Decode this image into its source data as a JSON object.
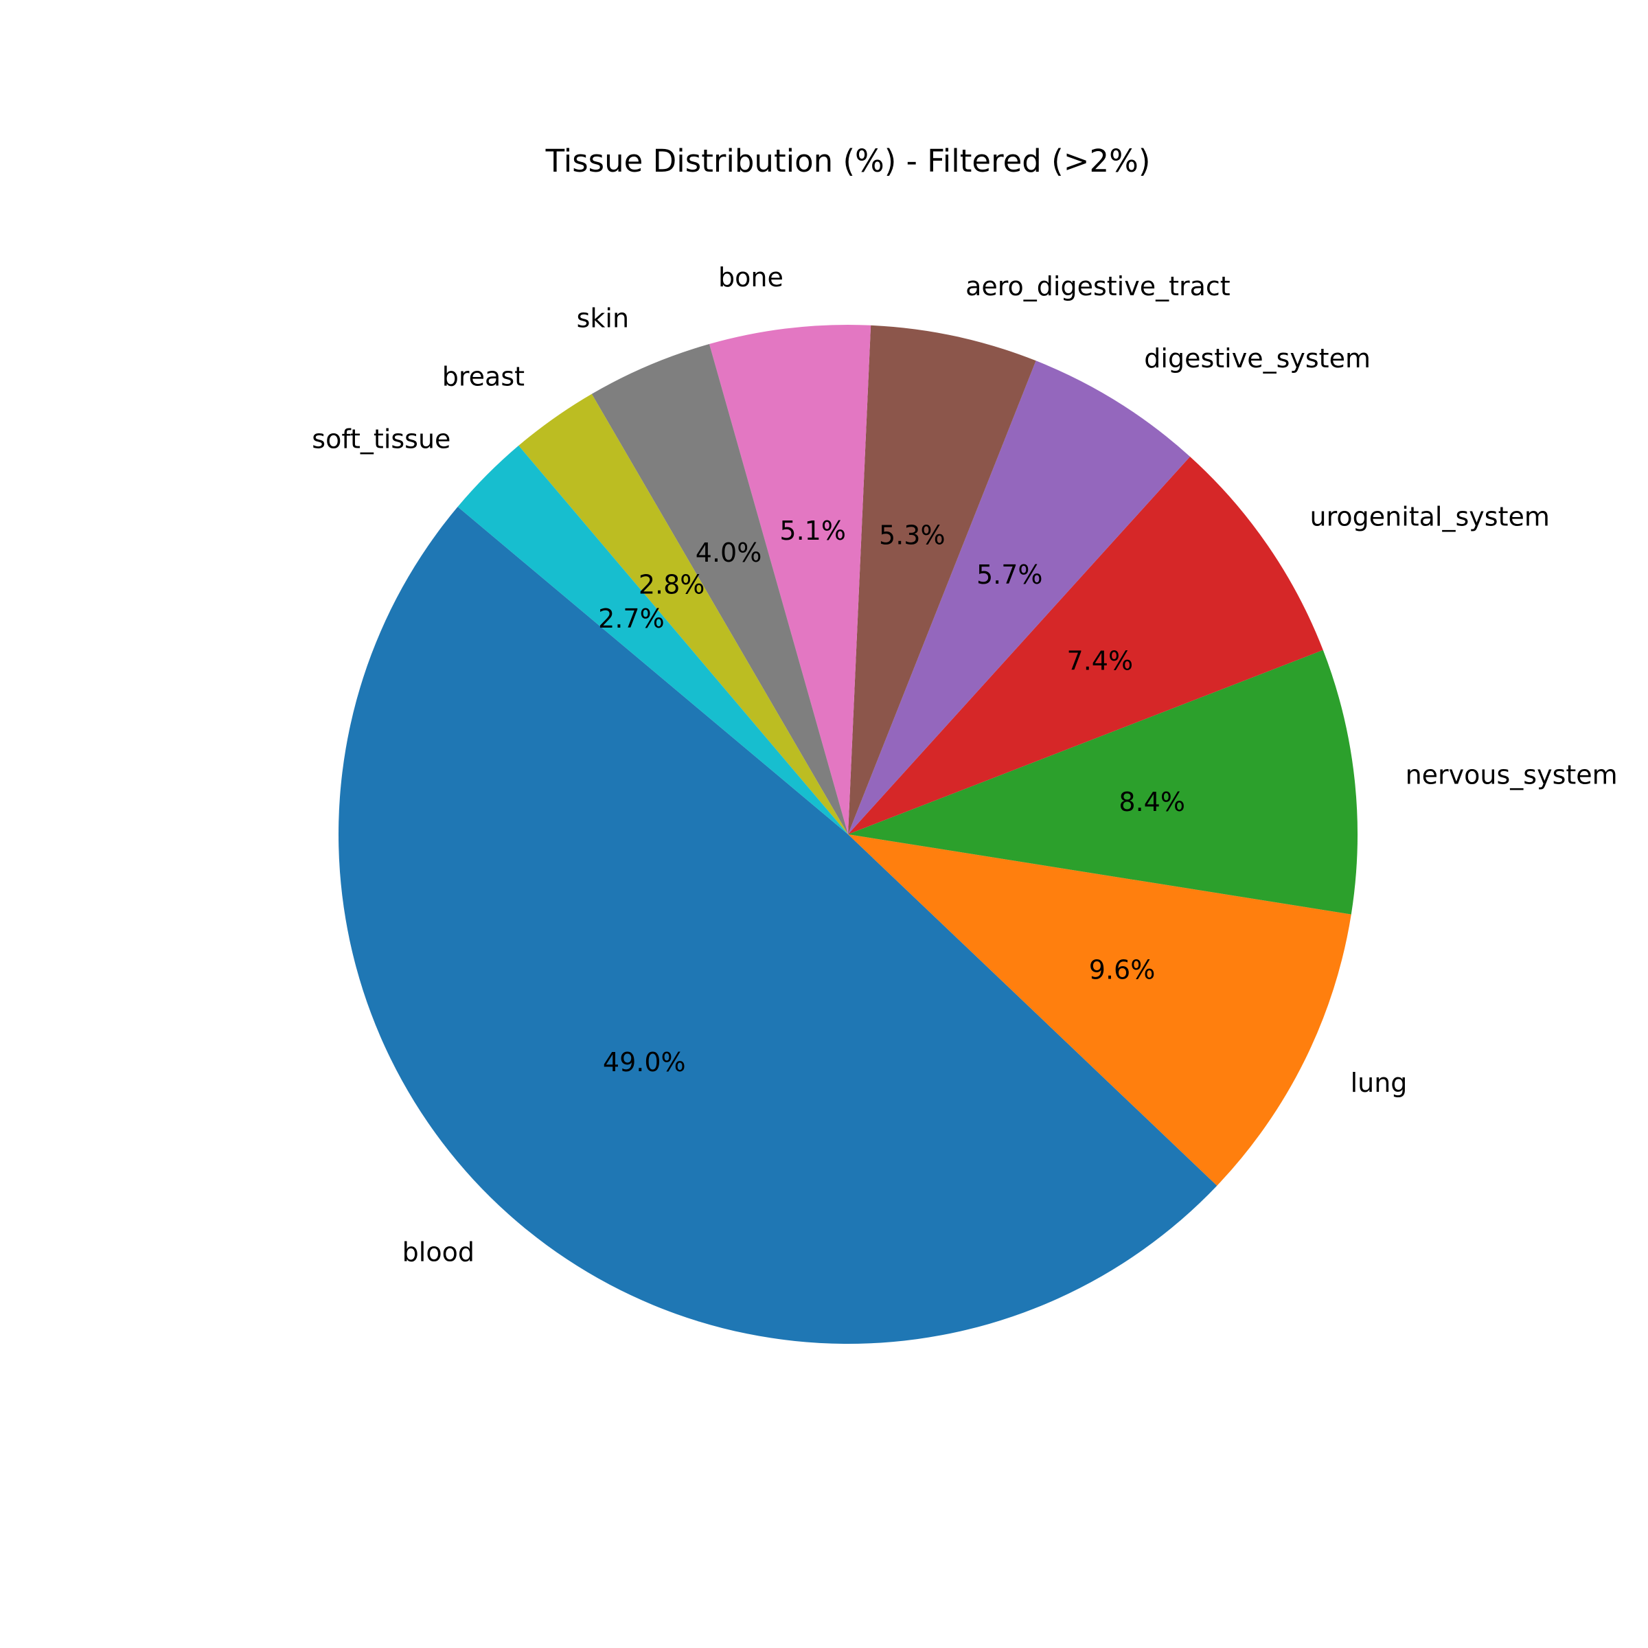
{
  "chart_data": {
    "type": "pie",
    "title": "Tissue Distribution (%) - Filtered (>2%)",
    "slices": [
      {
        "label": "blood",
        "value": 49.0,
        "pct_text": "49.0%",
        "color": "#1f77b4"
      },
      {
        "label": "lung",
        "value": 9.6,
        "pct_text": "9.6%",
        "color": "#ff7f0e"
      },
      {
        "label": "nervous_system",
        "value": 8.4,
        "pct_text": "8.4%",
        "color": "#2ca02c"
      },
      {
        "label": "urogenital_system",
        "value": 7.4,
        "pct_text": "7.4%",
        "color": "#d62728"
      },
      {
        "label": "digestive_system",
        "value": 5.7,
        "pct_text": "5.7%",
        "color": "#9467bd"
      },
      {
        "label": "aero_digestive_tract",
        "value": 5.3,
        "pct_text": "5.3%",
        "color": "#8c564b"
      },
      {
        "label": "bone",
        "value": 5.1,
        "pct_text": "5.1%",
        "color": "#e377c2"
      },
      {
        "label": "skin",
        "value": 4.0,
        "pct_text": "4.0%",
        "color": "#7f7f7f"
      },
      {
        "label": "breast",
        "value": 2.8,
        "pct_text": "2.8%",
        "color": "#bcbd22"
      },
      {
        "label": "soft_tissue",
        "value": 2.7,
        "pct_text": "2.7%",
        "color": "#17becf"
      }
    ],
    "start_angle_deg": 140,
    "direction": "counterclockwise"
  }
}
